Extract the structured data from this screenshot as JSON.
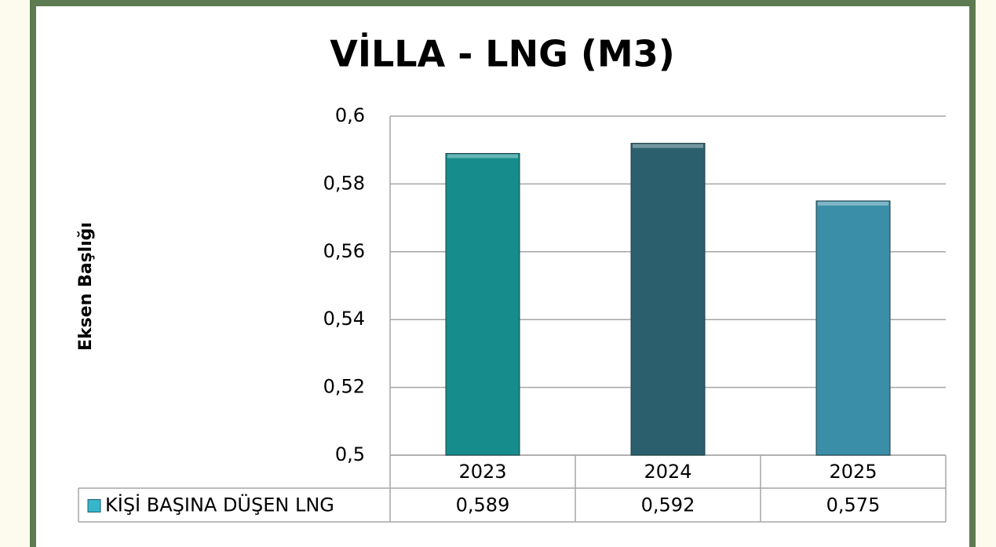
{
  "chart_data": {
    "type": "bar",
    "title": "VİLLA - LNG (M3)",
    "y_label": "Eksen Başlığı",
    "categories": [
      "2023",
      "2024",
      "2025"
    ],
    "series": [
      {
        "name": "KİŞİ BAŞINA DÜŞEN LNG",
        "color": "#35b6cb",
        "colors": [
          "#168c8c",
          "#2b5f6d",
          "#3a8ea8"
        ],
        "values": [
          0.589,
          0.592,
          0.575
        ],
        "value_labels": [
          "0,589",
          "0,592",
          "0,575"
        ]
      }
    ],
    "ylim": [
      0.5,
      0.6
    ],
    "yticks": [
      {
        "value": 0.5,
        "label": "0,5"
      },
      {
        "value": 0.52,
        "label": "0,52"
      },
      {
        "value": 0.54,
        "label": "0,54"
      },
      {
        "value": 0.56,
        "label": "0,56"
      },
      {
        "value": 0.58,
        "label": "0,58"
      },
      {
        "value": 0.6,
        "label": "0,6"
      }
    ],
    "grid": true
  }
}
